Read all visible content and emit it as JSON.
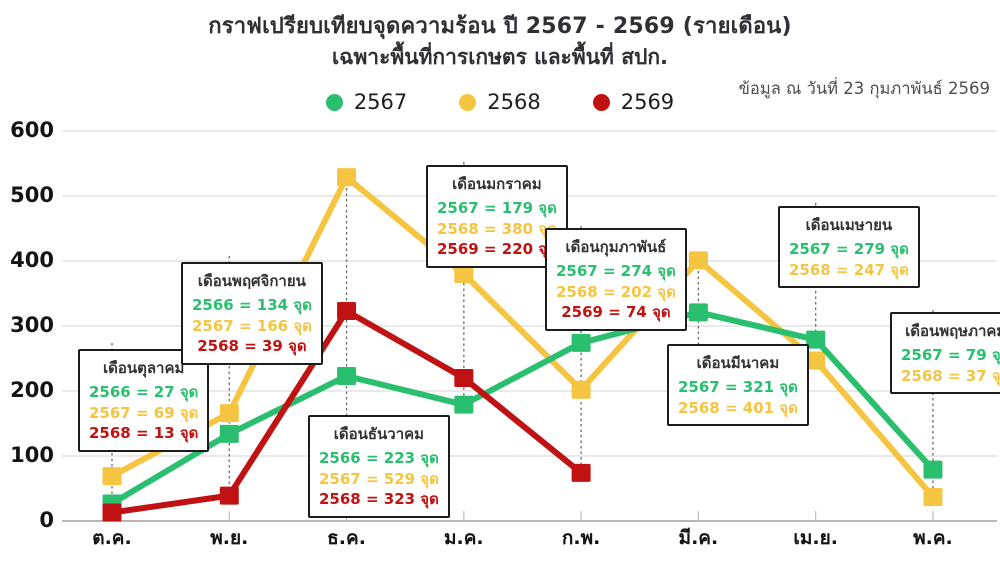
{
  "header": {
    "title": "กราฟเปรียบเทียบจุดความร้อน ปี 2567 - 2569 (รายเดือน)",
    "subtitle": "เฉพาะพื้นที่การเกษตร และพื้นที่ สปก.",
    "as_of": "ข้อมูล ณ วันที่ 23 กุมภาพันธ์ 2569"
  },
  "unit": "จุด",
  "colors": {
    "green": "#2abf6e",
    "yellow": "#f5c542",
    "red": "#c01212",
    "grid": "#dcdcdc",
    "axis": "#9e9e9e",
    "leader": "#6b6b6b"
  },
  "chart_data": {
    "type": "line",
    "title": "กราฟเปรียบเทียบจุดความร้อน ปี 2567 - 2569 (รายเดือน)",
    "subtitle": "เฉพาะพื้นที่การเกษตร และพื้นที่ สปก.",
    "categories": [
      "ต.ค.",
      "พ.ย.",
      "ธ.ค.",
      "ม.ค.",
      "ก.พ.",
      "มี.ค.",
      "เม.ย.",
      "พ.ค."
    ],
    "ylim": [
      0,
      600
    ],
    "yticks": [
      0,
      100,
      200,
      300,
      400,
      500,
      600
    ],
    "grid": true,
    "legend_position": "top",
    "marker": "square",
    "series": [
      {
        "name": "2567",
        "color": "#2abf6e",
        "values": [
          27,
          134,
          223,
          179,
          274,
          321,
          279,
          79
        ]
      },
      {
        "name": "2568",
        "color": "#f5c542",
        "values": [
          69,
          166,
          529,
          380,
          202,
          401,
          247,
          37
        ]
      },
      {
        "name": "2569",
        "color": "#c01212",
        "values": [
          13,
          39,
          323,
          220,
          74,
          null,
          null,
          null
        ]
      }
    ],
    "annotations": [
      {
        "title": "เดือนตุลาคม",
        "rows": [
          {
            "year": "2566",
            "value": 27,
            "color": "#2abf6e"
          },
          {
            "year": "2567",
            "value": 69,
            "color": "#f5c542"
          },
          {
            "year": "2568",
            "value": 13,
            "color": "#c01212"
          }
        ]
      },
      {
        "title": "เดือนพฤศจิกายน",
        "rows": [
          {
            "year": "2566",
            "value": 134,
            "color": "#2abf6e"
          },
          {
            "year": "2567",
            "value": 166,
            "color": "#f5c542"
          },
          {
            "year": "2568",
            "value": 39,
            "color": "#c01212"
          }
        ]
      },
      {
        "title": "เดือนธันวาคม",
        "rows": [
          {
            "year": "2566",
            "value": 223,
            "color": "#2abf6e"
          },
          {
            "year": "2567",
            "value": 529,
            "color": "#f5c542"
          },
          {
            "year": "2568",
            "value": 323,
            "color": "#c01212"
          }
        ]
      },
      {
        "title": "เดือนมกราคม",
        "rows": [
          {
            "year": "2567",
            "value": 179,
            "color": "#2abf6e"
          },
          {
            "year": "2568",
            "value": 380,
            "color": "#f5c542"
          },
          {
            "year": "2569",
            "value": 220,
            "color": "#c01212"
          }
        ]
      },
      {
        "title": "เดือนกุมภาพันธ์",
        "rows": [
          {
            "year": "2567",
            "value": 274,
            "color": "#2abf6e"
          },
          {
            "year": "2568",
            "value": 202,
            "color": "#f5c542"
          },
          {
            "year": "2569",
            "value": 74,
            "color": "#c01212"
          }
        ]
      },
      {
        "title": "เดือนมีนาคม",
        "rows": [
          {
            "year": "2567",
            "value": 321,
            "color": "#2abf6e"
          },
          {
            "year": "2568",
            "value": 401,
            "color": "#f5c542"
          }
        ]
      },
      {
        "title": "เดือนเมษายน",
        "rows": [
          {
            "year": "2567",
            "value": 279,
            "color": "#2abf6e"
          },
          {
            "year": "2568",
            "value": 247,
            "color": "#f5c542"
          }
        ]
      },
      {
        "title": "เดือนพฤษภาคม",
        "rows": [
          {
            "year": "2567",
            "value": 79,
            "color": "#2abf6e"
          },
          {
            "year": "2568",
            "value": 37,
            "color": "#f5c542"
          }
        ]
      }
    ]
  }
}
